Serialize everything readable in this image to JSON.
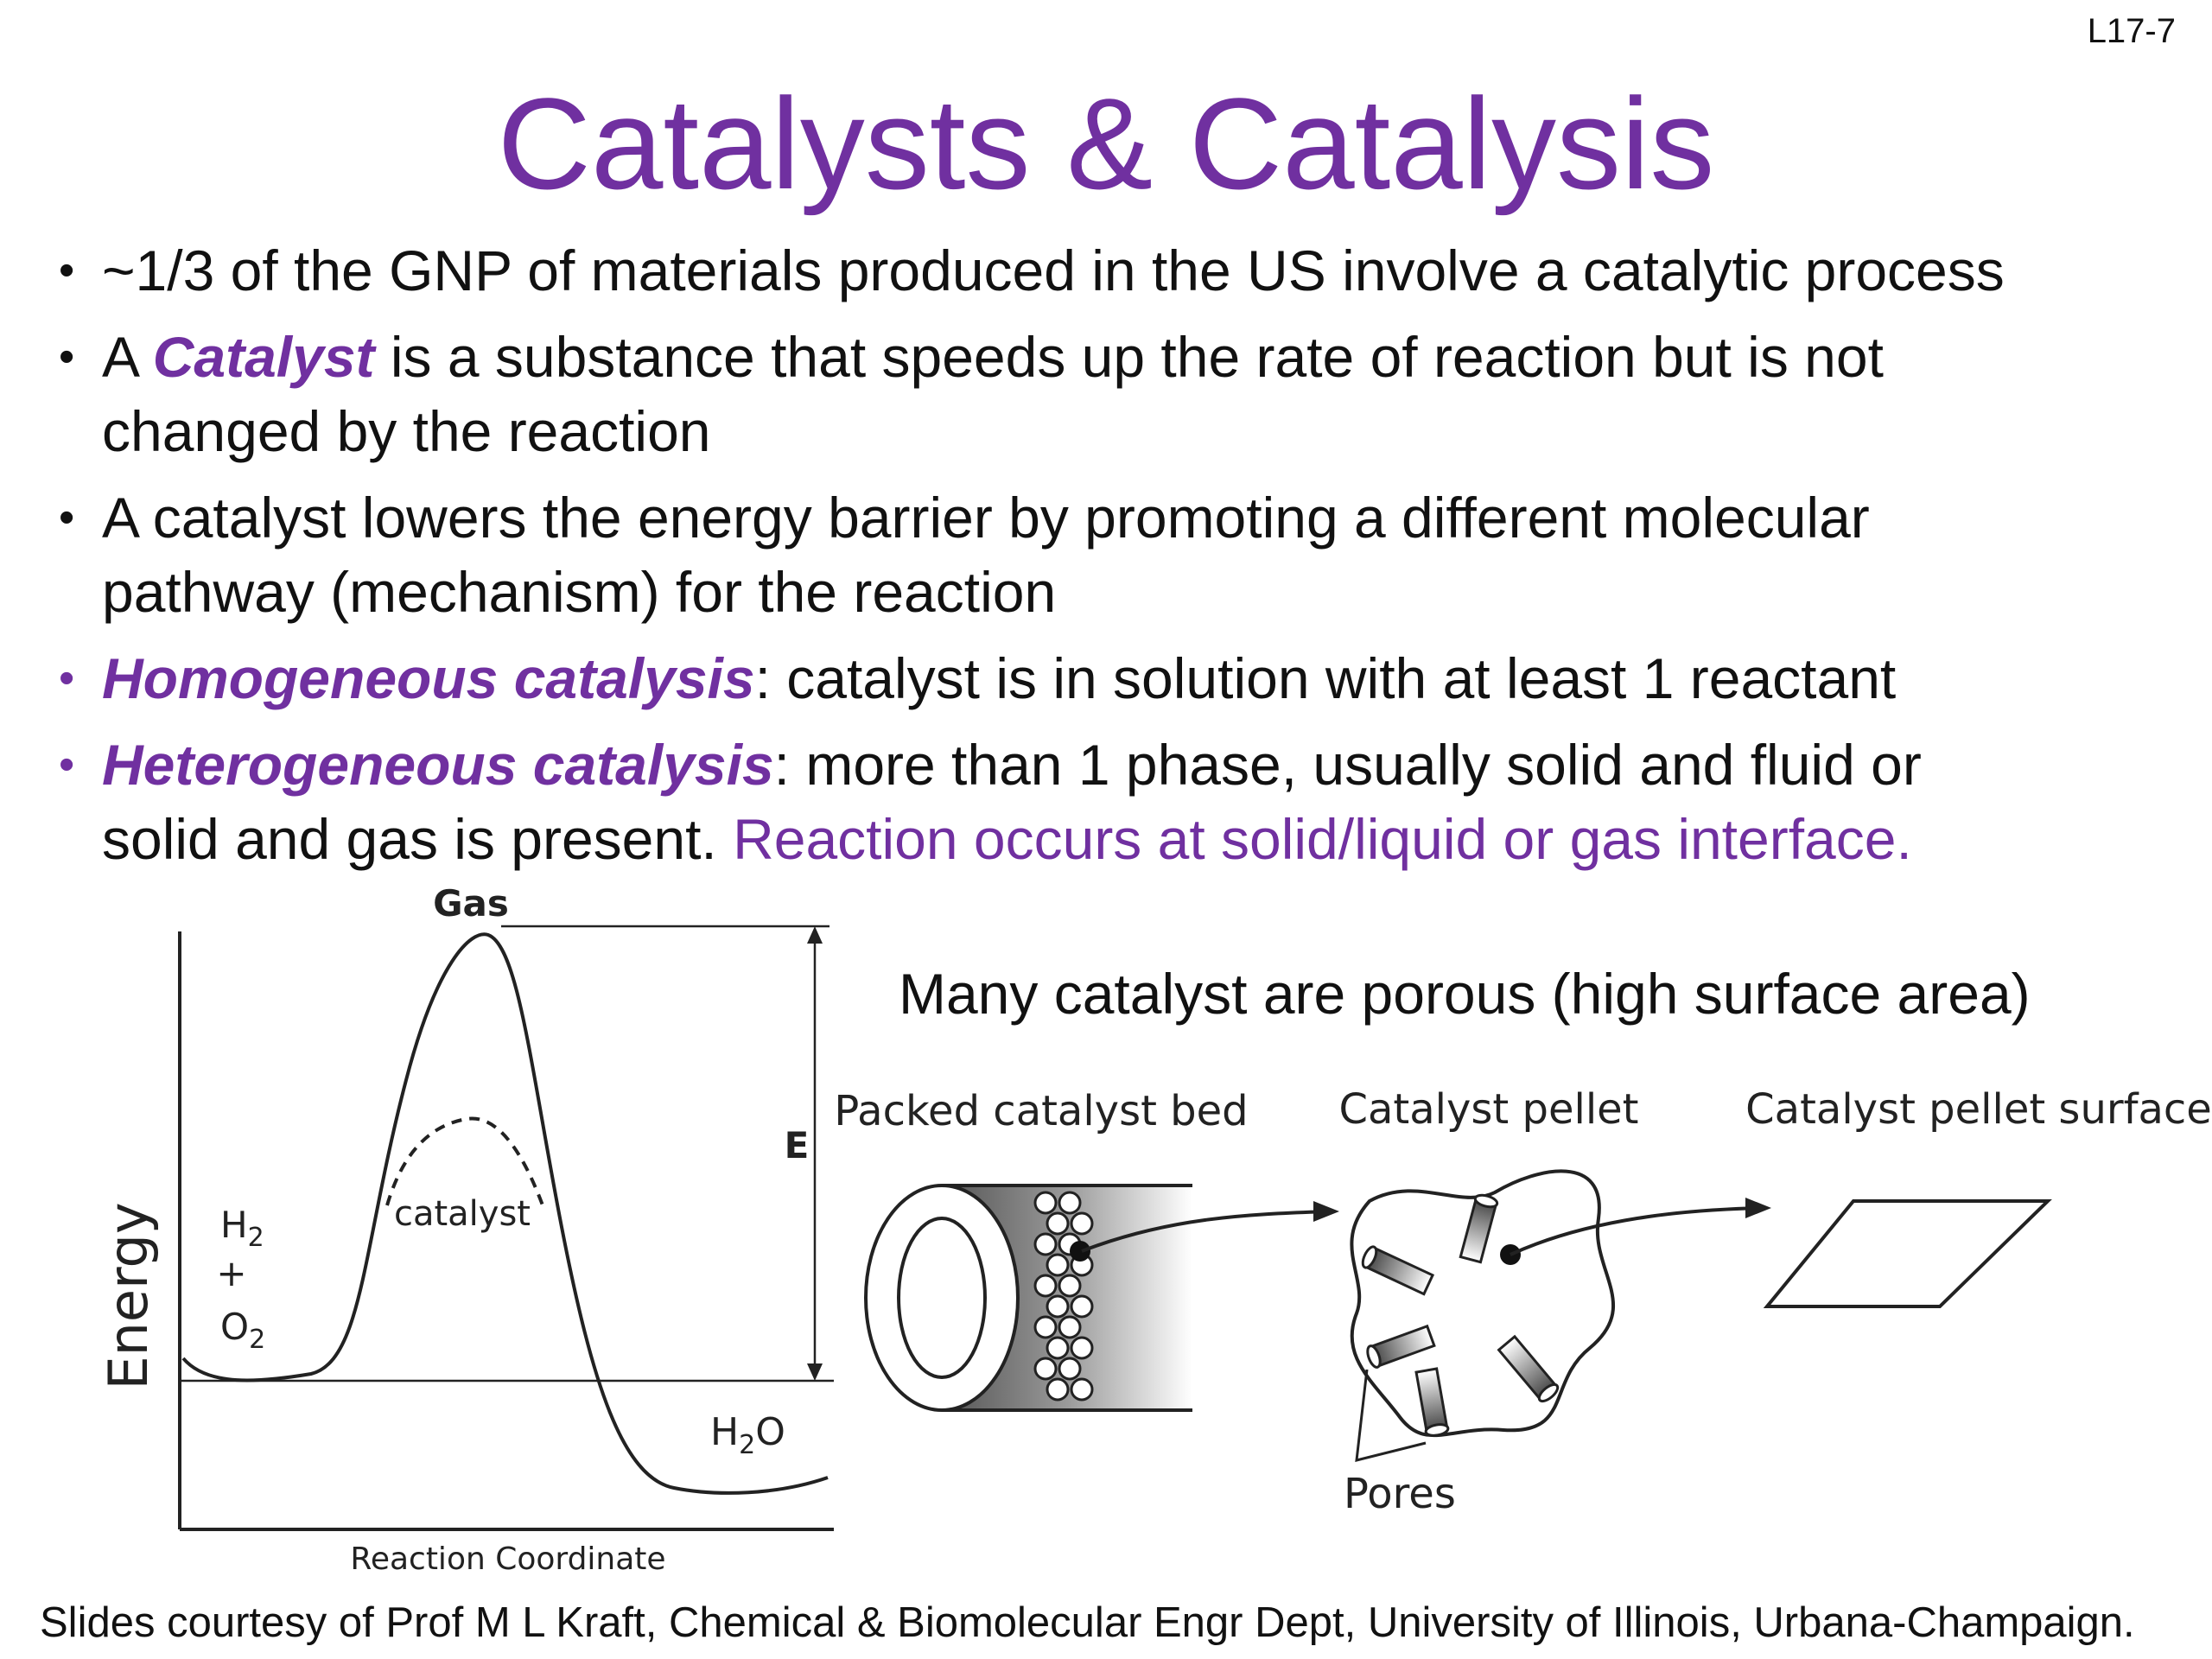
{
  "slide_number": "L17-7",
  "title": "Catalysts & Catalysis",
  "bullets": {
    "b1": {
      "text": "~1/3 of the GNP of materials produced in the US involve a catalytic process"
    },
    "b2": {
      "prefix": "A ",
      "term": "Catalyst",
      "rest_line1": " is a substance that speeds up the rate of reaction but is not",
      "rest_line2": "changed by the reaction"
    },
    "b3": {
      "line1": "A catalyst lowers the energy barrier by promoting a different molecular",
      "line2": "pathway (mechanism) for the reaction"
    },
    "b4": {
      "term": "Homogeneous catalysis",
      "rest": ": catalyst is in solution with at least 1 reactant"
    },
    "b5": {
      "term": "Heterogeneous catalysis",
      "rest_line1": ": more than 1 phase, usually solid and fluid or",
      "rest_line2_plain": "solid and gas is present.  ",
      "rest_line2_purple": "Reaction occurs at solid/liquid or gas interface."
    }
  },
  "energy_diagram": {
    "peak_label": "Gas",
    "y_axis_label": "Energy",
    "x_axis_label": "Reaction Coordinate",
    "barrier_label": "E",
    "catalyst_label": "catalyst",
    "reactant_h": "H",
    "reactant_h_sub": "2",
    "plus": "+",
    "reactant_o": "O",
    "reactant_o_sub": "2",
    "product_h": "H",
    "product_sub": "2",
    "product_o": "O"
  },
  "porous_note": "Many catalyst are porous (high surface area)",
  "catalyst_figure": {
    "packed_bed_label": "Packed catalyst bed",
    "pellet_label": "Catalyst pellet",
    "surface_label": "Catalyst pellet surface",
    "pores_label": "Pores"
  },
  "footer": "Slides courtesy of Prof M L Kraft, Chemical & Biomolecular Engr Dept, University of Illinois, Urbana-Champaign."
}
